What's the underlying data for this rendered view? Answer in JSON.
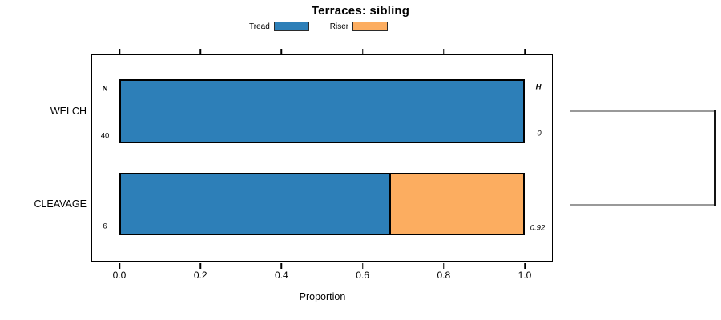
{
  "title": "Terraces: sibling",
  "legend": {
    "items": [
      {
        "label": "Tread",
        "color": "#2d7fb8"
      },
      {
        "label": "Riser",
        "color": "#fcad60"
      }
    ]
  },
  "axis": {
    "xlabel": "Proportion",
    "tick_labels": [
      "0.0",
      "0.2",
      "0.4",
      "0.6",
      "0.8",
      "1.0"
    ]
  },
  "annotations": {
    "n_header": "N",
    "h_header": "H",
    "rows": [
      {
        "category": "WELCH",
        "n": "40",
        "h": "0"
      },
      {
        "category": "CLEAVAGE",
        "n": "6",
        "h": "0.92"
      }
    ]
  },
  "dendrogram": {
    "line_color": "#999999",
    "connector_color": "#141414"
  },
  "chart_data": {
    "type": "bar",
    "orientation": "horizontal",
    "stacked": true,
    "title": "Terraces: sibling",
    "xlabel": "Proportion",
    "xlim": [
      0,
      1
    ],
    "xticks": [
      0,
      0.2,
      0.4,
      0.6,
      0.8,
      1.0
    ],
    "grid": false,
    "legend_position": "top-center",
    "categories": [
      "WELCH",
      "CLEAVAGE"
    ],
    "series": [
      {
        "name": "Tread",
        "color": "#2d7fb8",
        "values": [
          1.0,
          0.667
        ]
      },
      {
        "name": "Riser",
        "color": "#fcad60",
        "values": [
          0.0,
          0.333
        ]
      }
    ],
    "N": [
      40,
      6
    ],
    "H": [
      0,
      0.92
    ]
  }
}
